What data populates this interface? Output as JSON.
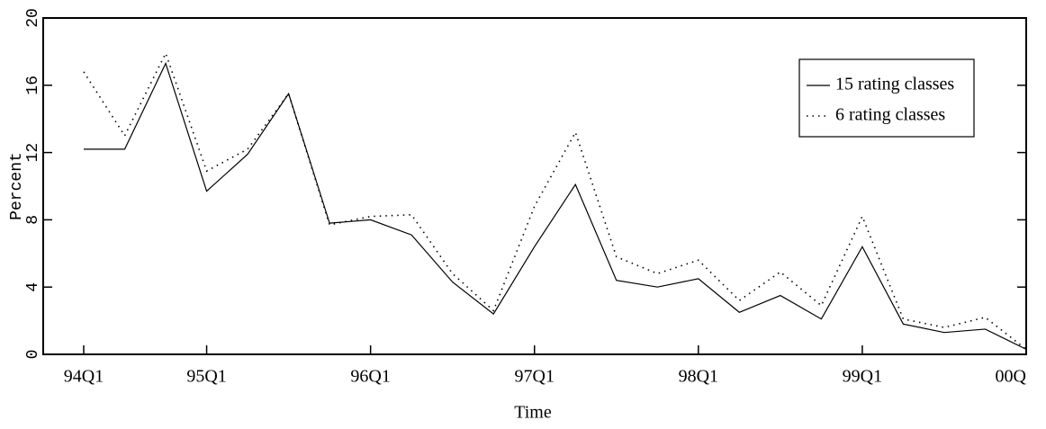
{
  "chart_data": {
    "type": "line",
    "x_label": "Time",
    "y_label": "Percent",
    "categories": [
      "94Q1",
      null,
      null,
      "95Q1",
      null,
      null,
      null,
      "96Q1",
      null,
      null,
      null,
      "97Q1",
      null,
      null,
      null,
      "98Q1",
      null,
      null,
      null,
      "99Q1",
      null,
      null,
      null,
      "00Q"
    ],
    "series": [
      {
        "name": "15 rating classes",
        "color": "#000000",
        "style": "solid",
        "values": [
          12.2,
          12.2,
          17.3,
          9.7,
          11.9,
          15.5,
          7.8,
          8.0,
          7.1,
          4.3,
          2.4,
          6.4,
          10.1,
          4.4,
          4.0,
          4.5,
          2.5,
          3.5,
          2.1,
          6.4,
          1.8,
          1.3,
          1.5,
          0.3
        ]
      },
      {
        "name": "6 rating classes",
        "color": "#000000",
        "style": "dotted",
        "values": [
          16.8,
          13.0,
          17.9,
          10.9,
          12.2,
          15.5,
          7.7,
          8.2,
          8.3,
          4.8,
          2.6,
          8.8,
          13.2,
          5.8,
          4.8,
          5.6,
          3.2,
          4.9,
          2.9,
          8.2,
          2.1,
          1.6,
          2.2,
          0.3
        ]
      }
    ],
    "ylim": [
      0,
      20
    ],
    "yticks": [
      0,
      4,
      8,
      12,
      16,
      20
    ],
    "legend": "upper right",
    "grid": false
  }
}
